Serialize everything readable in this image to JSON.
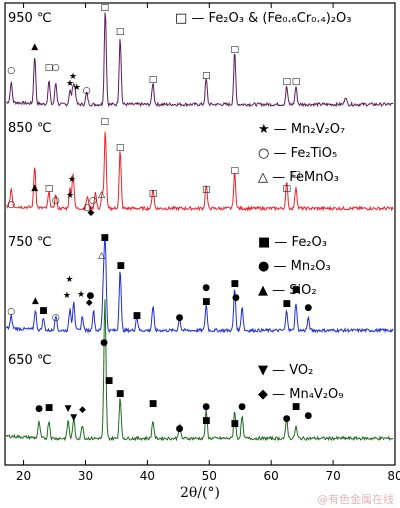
{
  "chart_data": {
    "type": "line",
    "xlabel": "2θ/(°)",
    "xlim": [
      17,
      80
    ],
    "xticks": [
      "20",
      "30",
      "40",
      "50",
      "60",
      "70",
      "80"
    ],
    "y_ticks_shown": false,
    "series": [
      {
        "name": "950 ℃",
        "color": "#5a1e5c",
        "peaks": [
          18.0,
          21.8,
          24.1,
          25.2,
          27.5,
          28.0,
          28.3,
          30.2,
          33.2,
          35.6,
          40.9,
          49.5,
          54.1,
          62.5,
          64.0,
          72.0
        ]
      },
      {
        "name": "850 ℃",
        "color": "#e8232a",
        "peaks": [
          18.0,
          21.8,
          24.1,
          25.2,
          27.5,
          28.0,
          30.3,
          31.6,
          32.7,
          33.2,
          35.6,
          40.9,
          49.5,
          54.1,
          62.5,
          64.0
        ]
      },
      {
        "name": "750 ℃",
        "color": "#1f2fcf",
        "peaks": [
          18.0,
          21.9,
          23.2,
          25.2,
          27.5,
          28.1,
          29.5,
          31.3,
          32.9,
          33.2,
          35.6,
          38.3,
          40.9,
          45.2,
          49.5,
          54.1,
          55.3,
          62.5,
          64.0,
          66.0
        ]
      },
      {
        "name": "650 ℃",
        "color": "#1f6b1f",
        "peaks": [
          22.5,
          24.1,
          27.2,
          28.1,
          29.5,
          33.1,
          33.2,
          35.6,
          40.9,
          45.2,
          49.5,
          54.1,
          55.3,
          62.5,
          64.0
        ]
      }
    ],
    "legend": [
      {
        "symbol": "□",
        "label": "Fe₂O₃ & (Fe₀.₆Cr₀.₄)₂O₃"
      },
      {
        "symbol": "★",
        "label": "Mn₂V₂O₇"
      },
      {
        "symbol": "○",
        "label": "Fe₂TiO₅"
      },
      {
        "symbol": "△",
        "label": "FeMnO₃"
      },
      {
        "symbol": "■",
        "label": "Fe₂O₃"
      },
      {
        "symbol": "●",
        "label": "Mn₂O₃"
      },
      {
        "symbol": "▲",
        "label": "SiO₂"
      },
      {
        "symbol": "▼",
        "label": "VO₂"
      },
      {
        "symbol": "◆",
        "label": "Mn₄V₂O₉"
      }
    ]
  },
  "watermark": "@有色金属在线"
}
